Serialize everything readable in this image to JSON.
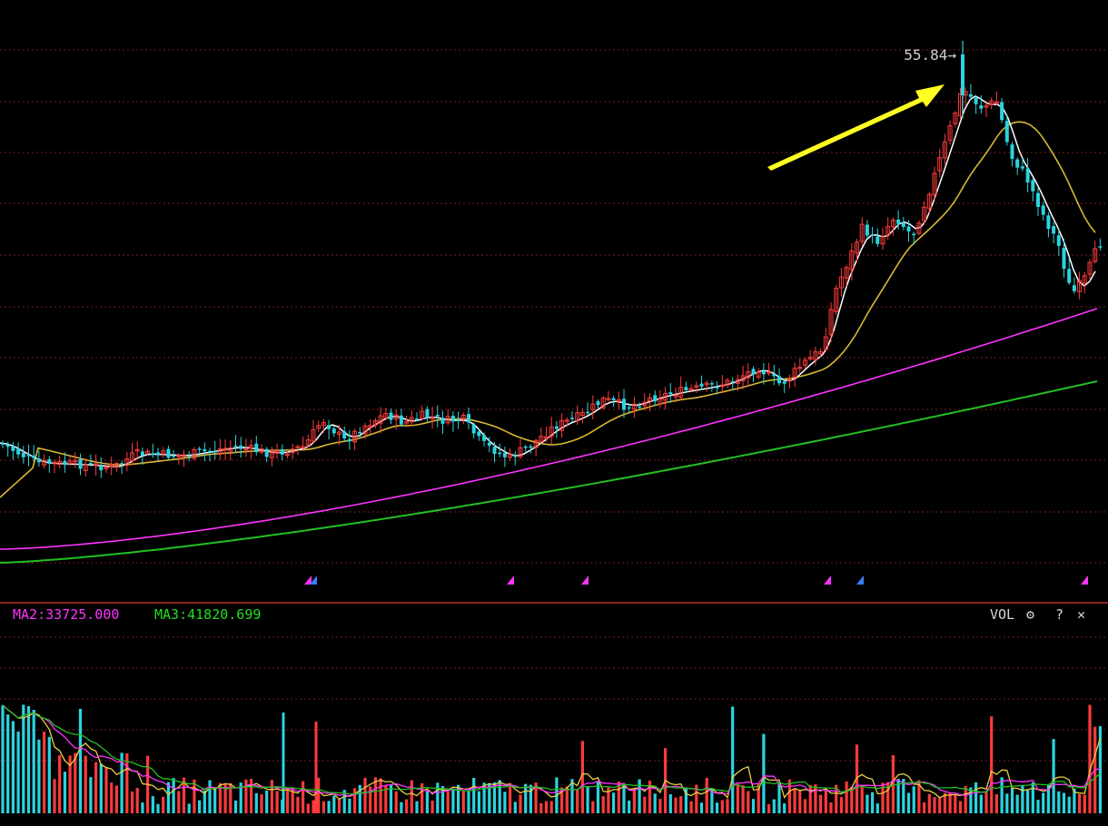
{
  "chart_data": {
    "type": "candlestick",
    "title": "",
    "peak_annotation": {
      "value": 55.84,
      "label": "55.84",
      "arrow": "→"
    },
    "volume_panel": {
      "indicator": "VOL",
      "ma2_label": "MA2:33725.000",
      "ma3_label": "MA3:41820.699"
    },
    "grid": true,
    "colors": {
      "background": "#000000",
      "up": "#ff3b3b",
      "down": "#2ad4e0",
      "ma_short": "#ffffff",
      "ma_mid": "#d8b830",
      "ma_long1": "#ff33ff",
      "ma_long2": "#22c022",
      "grid": "#7a2020",
      "annotation_arrow": "#ffff22"
    },
    "icons": [
      "gear-icon",
      "help-icon",
      "close-icon"
    ]
  }
}
